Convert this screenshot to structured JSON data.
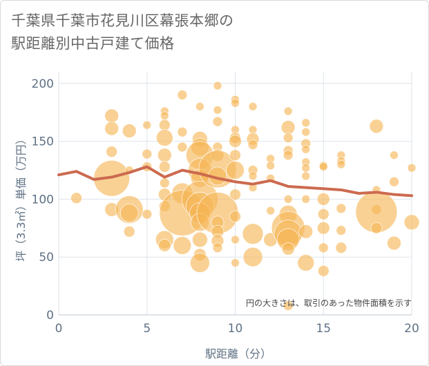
{
  "title_lines": [
    "千葉県千葉市花見川区幕張本郷の",
    "駅距離別中古戸建て価格"
  ],
  "chart_data": {
    "type": "scatter",
    "title": "千葉県千葉市花見川区幕張本郷の駅距離別中古戸建て価格",
    "xlabel": "駅距離（分）",
    "ylabel": "坪（3.3㎡）単価（万円）",
    "xlim": [
      0,
      20
    ],
    "ylim": [
      0,
      210
    ],
    "xticks": [
      0,
      5,
      10,
      15,
      20
    ],
    "yticks": [
      0,
      50,
      100,
      150,
      200
    ],
    "annotation": "円の大きさは、取引のあった物件面積を示す",
    "bubble_color": "#f5b454",
    "line_color": "#cc6a4f",
    "trend": {
      "x": [
        0,
        1,
        2,
        3,
        4,
        5,
        6,
        7,
        8,
        9,
        10,
        11,
        12,
        13,
        14,
        15,
        16,
        17,
        18,
        19,
        20
      ],
      "y": [
        121,
        124,
        117,
        119,
        123,
        128,
        119,
        125,
        122,
        118,
        115,
        113,
        116,
        111,
        110,
        109,
        108,
        105,
        106,
        104,
        103
      ]
    },
    "bubbles": [
      {
        "x": 1,
        "y": 101,
        "r": 8
      },
      {
        "x": 3,
        "y": 172,
        "r": 10
      },
      {
        "x": 3,
        "y": 161,
        "r": 10
      },
      {
        "x": 3,
        "y": 141,
        "r": 8
      },
      {
        "x": 3,
        "y": 118,
        "r": 26
      },
      {
        "x": 3,
        "y": 91,
        "r": 10
      },
      {
        "x": 4,
        "y": 159,
        "r": 10
      },
      {
        "x": 4,
        "y": 125,
        "r": 6
      },
      {
        "x": 4,
        "y": 91,
        "r": 20
      },
      {
        "x": 4,
        "y": 88,
        "r": 13
      },
      {
        "x": 4,
        "y": 72,
        "r": 8
      },
      {
        "x": 5,
        "y": 164,
        "r": 6
      },
      {
        "x": 5,
        "y": 139,
        "r": 7
      },
      {
        "x": 5,
        "y": 128,
        "r": 7
      },
      {
        "x": 5,
        "y": 87,
        "r": 7
      },
      {
        "x": 6,
        "y": 176,
        "r": 6
      },
      {
        "x": 6,
        "y": 172,
        "r": 6
      },
      {
        "x": 6,
        "y": 164,
        "r": 8
      },
      {
        "x": 6,
        "y": 153,
        "r": 12
      },
      {
        "x": 6,
        "y": 138,
        "r": 10
      },
      {
        "x": 6,
        "y": 128,
        "r": 8
      },
      {
        "x": 6,
        "y": 114,
        "r": 7
      },
      {
        "x": 6,
        "y": 104,
        "r": 9
      },
      {
        "x": 6,
        "y": 94,
        "r": 8
      },
      {
        "x": 6,
        "y": 65,
        "r": 13
      },
      {
        "x": 6,
        "y": 60,
        "r": 9
      },
      {
        "x": 7,
        "y": 190,
        "r": 7
      },
      {
        "x": 7,
        "y": 158,
        "r": 7
      },
      {
        "x": 7,
        "y": 145,
        "r": 7
      },
      {
        "x": 7,
        "y": 105,
        "r": 15
      },
      {
        "x": 7,
        "y": 88,
        "r": 33
      },
      {
        "x": 7,
        "y": 60,
        "r": 13
      },
      {
        "x": 8,
        "y": 180,
        "r": 6
      },
      {
        "x": 8,
        "y": 152,
        "r": 11
      },
      {
        "x": 8,
        "y": 145,
        "r": 13
      },
      {
        "x": 8,
        "y": 138,
        "r": 20
      },
      {
        "x": 8,
        "y": 125,
        "r": 17
      },
      {
        "x": 8,
        "y": 118,
        "r": 13
      },
      {
        "x": 8,
        "y": 100,
        "r": 26
      },
      {
        "x": 8,
        "y": 94,
        "r": 20
      },
      {
        "x": 8,
        "y": 88,
        "r": 15
      },
      {
        "x": 8,
        "y": 80,
        "r": 13
      },
      {
        "x": 8,
        "y": 65,
        "r": 11
      },
      {
        "x": 8,
        "y": 52,
        "r": 9
      },
      {
        "x": 8,
        "y": 45,
        "r": 14
      },
      {
        "x": 9,
        "y": 198,
        "r": 6
      },
      {
        "x": 9,
        "y": 177,
        "r": 6
      },
      {
        "x": 9,
        "y": 167,
        "r": 7
      },
      {
        "x": 9,
        "y": 145,
        "r": 7
      },
      {
        "x": 9,
        "y": 138,
        "r": 9
      },
      {
        "x": 9,
        "y": 126,
        "r": 27
      },
      {
        "x": 9,
        "y": 120,
        "r": 13
      },
      {
        "x": 9,
        "y": 88,
        "r": 30
      },
      {
        "x": 9,
        "y": 80,
        "r": 9
      },
      {
        "x": 9,
        "y": 72,
        "r": 9
      },
      {
        "x": 9,
        "y": 64,
        "r": 9
      },
      {
        "x": 9,
        "y": 58,
        "r": 7
      },
      {
        "x": 10,
        "y": 186,
        "r": 6
      },
      {
        "x": 10,
        "y": 183,
        "r": 6
      },
      {
        "x": 10,
        "y": 160,
        "r": 6
      },
      {
        "x": 10,
        "y": 153,
        "r": 8
      },
      {
        "x": 10,
        "y": 150,
        "r": 9
      },
      {
        "x": 10,
        "y": 138,
        "r": 8
      },
      {
        "x": 10,
        "y": 125,
        "r": 13
      },
      {
        "x": 10,
        "y": 104,
        "r": 8
      },
      {
        "x": 10,
        "y": 85,
        "r": 8
      },
      {
        "x": 10,
        "y": 65,
        "r": 6
      },
      {
        "x": 10,
        "y": 45,
        "r": 6
      },
      {
        "x": 11,
        "y": 180,
        "r": 6
      },
      {
        "x": 11,
        "y": 160,
        "r": 6
      },
      {
        "x": 11,
        "y": 152,
        "r": 9
      },
      {
        "x": 11,
        "y": 147,
        "r": 7
      },
      {
        "x": 11,
        "y": 125,
        "r": 7
      },
      {
        "x": 11,
        "y": 120,
        "r": 6
      },
      {
        "x": 11,
        "y": 110,
        "r": 6
      },
      {
        "x": 11,
        "y": 70,
        "r": 15
      },
      {
        "x": 11,
        "y": 50,
        "r": 14
      },
      {
        "x": 12,
        "y": 135,
        "r": 6
      },
      {
        "x": 12,
        "y": 129,
        "r": 6
      },
      {
        "x": 12,
        "y": 118,
        "r": 6
      },
      {
        "x": 12,
        "y": 90,
        "r": 6
      },
      {
        "x": 12,
        "y": 65,
        "r": 10
      },
      {
        "x": 13,
        "y": 176,
        "r": 6
      },
      {
        "x": 13,
        "y": 162,
        "r": 10
      },
      {
        "x": 13,
        "y": 153,
        "r": 7
      },
      {
        "x": 13,
        "y": 142,
        "r": 7
      },
      {
        "x": 13,
        "y": 138,
        "r": 7
      },
      {
        "x": 13,
        "y": 100,
        "r": 6
      },
      {
        "x": 13,
        "y": 87,
        "r": 13
      },
      {
        "x": 13,
        "y": 75,
        "r": 24
      },
      {
        "x": 13,
        "y": 70,
        "r": 20
      },
      {
        "x": 13,
        "y": 65,
        "r": 16
      },
      {
        "x": 13,
        "y": 57,
        "r": 9
      },
      {
        "x": 13,
        "y": 8,
        "r": 7
      },
      {
        "x": 14,
        "y": 166,
        "r": 6
      },
      {
        "x": 14,
        "y": 158,
        "r": 6
      },
      {
        "x": 14,
        "y": 148,
        "r": 7
      },
      {
        "x": 14,
        "y": 143,
        "r": 6
      },
      {
        "x": 14,
        "y": 132,
        "r": 6
      },
      {
        "x": 14,
        "y": 127,
        "r": 6
      },
      {
        "x": 14,
        "y": 120,
        "r": 6
      },
      {
        "x": 14,
        "y": 100,
        "r": 6
      },
      {
        "x": 14,
        "y": 72,
        "r": 10
      },
      {
        "x": 14,
        "y": 45,
        "r": 12
      },
      {
        "x": 15,
        "y": 129,
        "r": 6
      },
      {
        "x": 15,
        "y": 128,
        "r": 6
      },
      {
        "x": 15,
        "y": 100,
        "r": 9
      },
      {
        "x": 15,
        "y": 87,
        "r": 8
      },
      {
        "x": 15,
        "y": 75,
        "r": 9
      },
      {
        "x": 15,
        "y": 58,
        "r": 7
      },
      {
        "x": 15,
        "y": 38,
        "r": 8
      },
      {
        "x": 16,
        "y": 138,
        "r": 6
      },
      {
        "x": 16,
        "y": 133,
        "r": 6
      },
      {
        "x": 16,
        "y": 130,
        "r": 6
      },
      {
        "x": 16,
        "y": 92,
        "r": 7
      },
      {
        "x": 16,
        "y": 73,
        "r": 7
      },
      {
        "x": 16,
        "y": 58,
        "r": 8
      },
      {
        "x": 18,
        "y": 163,
        "r": 10
      },
      {
        "x": 18,
        "y": 108,
        "r": 6
      },
      {
        "x": 18,
        "y": 91,
        "r": 7
      },
      {
        "x": 18,
        "y": 89,
        "r": 30
      },
      {
        "x": 18,
        "y": 75,
        "r": 8
      },
      {
        "x": 19,
        "y": 138,
        "r": 6
      },
      {
        "x": 19,
        "y": 115,
        "r": 7
      },
      {
        "x": 19,
        "y": 62,
        "r": 10
      },
      {
        "x": 20,
        "y": 127,
        "r": 6
      },
      {
        "x": 20,
        "y": 80,
        "r": 11
      }
    ]
  }
}
